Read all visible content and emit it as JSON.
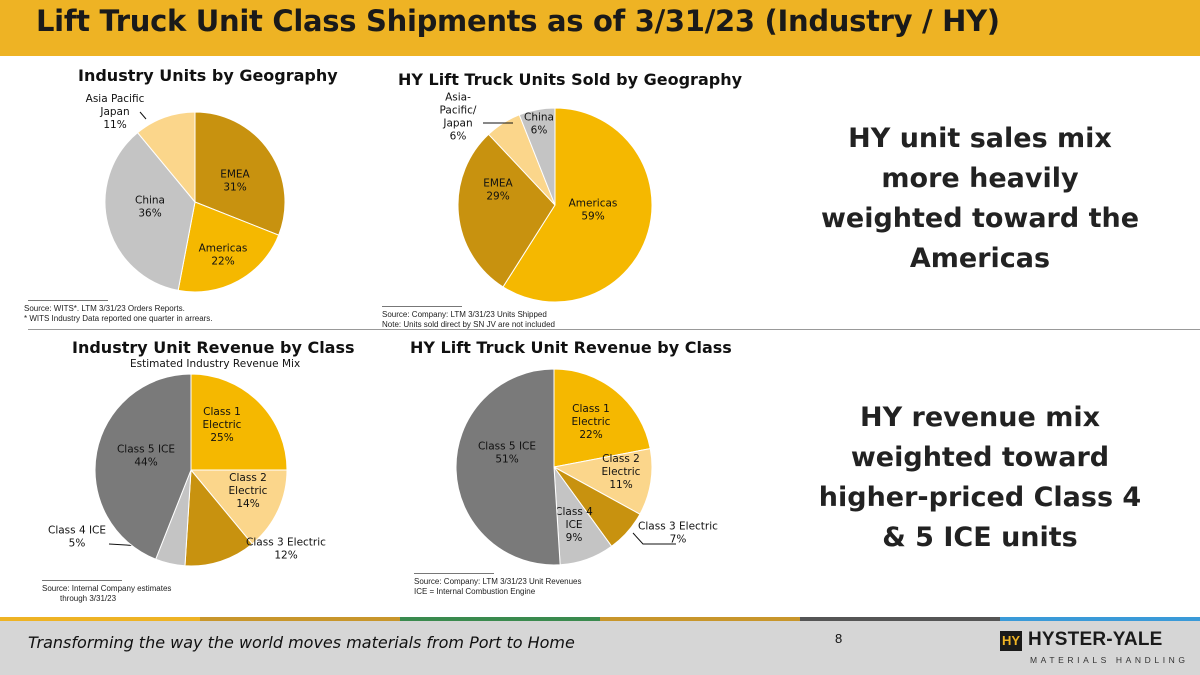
{
  "title": "Lift Truck Unit Class Shipments as of 3/31/23 (Industry / HY)",
  "callouts": {
    "top": [
      "HY unit sales mix",
      "more heavily",
      "weighted toward the",
      "Americas"
    ],
    "bottom": [
      "HY revenue mix",
      "weighted toward",
      "higher-priced Class 4",
      "& 5 ICE units"
    ]
  },
  "sources": {
    "c1": [
      "Source: WITS*.  LTM 3/31/23 Orders Reports.",
      "* WITS Industry Data reported one quarter in arrears."
    ],
    "c2": [
      "Source: Company: LTM 3/31/23 Units Shipped",
      "Note:  Units sold direct by SN JV are not included"
    ],
    "c3": [
      "Source: Internal Company estimates",
      "through 3/31/23"
    ],
    "c4": [
      "Source: Company: LTM 3/31/23 Unit Revenues",
      "ICE = Internal Combustion Engine"
    ]
  },
  "footer": {
    "tagline": "Transforming the way the world moves materials from Port to Home",
    "page_number": "8",
    "logo_mark": "HY",
    "logo_name": "HYSTER-YALE",
    "logo_sub": "MATERIALS HANDLING"
  },
  "colors": {
    "title_bar": "#eeb324",
    "stripe": [
      "#eeb324",
      "#c8962b",
      "#3a8a4e",
      "#c8962b",
      "#555555",
      "#3a9ad8"
    ]
  },
  "chart_data": [
    {
      "type": "pie",
      "title": "Industry Units by Geography",
      "subtitle": "",
      "slices": [
        {
          "name": "EMEA",
          "value": 31,
          "label": [
            "EMEA",
            "31%"
          ],
          "color": "#c8920f"
        },
        {
          "name": "Americas",
          "value": 22,
          "label": [
            "Americas",
            "22%"
          ],
          "color": "#f5b800"
        },
        {
          "name": "China",
          "value": 36,
          "label": [
            "China",
            "36%"
          ],
          "color": "#c4c4c4"
        },
        {
          "name": "Asia Pacific Japan",
          "value": 11,
          "label": [
            "Asia Pacific",
            "Japan",
            "11%"
          ],
          "color": "#fbd68b"
        }
      ]
    },
    {
      "type": "pie",
      "title": "HY Lift Truck Units Sold by Geography",
      "subtitle": "",
      "slices": [
        {
          "name": "Americas",
          "value": 59,
          "label": [
            "Americas",
            "59%"
          ],
          "color": "#f5b800"
        },
        {
          "name": "EMEA",
          "value": 29,
          "label": [
            "EMEA",
            "29%"
          ],
          "color": "#c8920f"
        },
        {
          "name": "Asia-Pacific/Japan",
          "value": 6,
          "label": [
            "Asia-",
            "Pacific/",
            "Japan",
            "6%"
          ],
          "color": "#fbd68b"
        },
        {
          "name": "China",
          "value": 6,
          "label": [
            "China",
            "6%"
          ],
          "color": "#c4c4c4"
        }
      ]
    },
    {
      "type": "pie",
      "title": "Industry Unit Revenue by Class",
      "subtitle": "Estimated Industry Revenue Mix",
      "slices": [
        {
          "name": "Class 1 Electric",
          "value": 25,
          "label": [
            "Class 1",
            "Electric",
            "25%"
          ],
          "color": "#f5b800"
        },
        {
          "name": "Class 2 Electric",
          "value": 14,
          "label": [
            "Class 2",
            "Electric",
            "14%"
          ],
          "color": "#fbd68b"
        },
        {
          "name": "Class 3 Electric",
          "value": 12,
          "label": [
            "Class 3 Electric",
            "12%"
          ],
          "color": "#c8920f"
        },
        {
          "name": "Class 4 ICE",
          "value": 5,
          "label": [
            "Class 4 ICE",
            "5%"
          ],
          "color": "#c4c4c4"
        },
        {
          "name": "Class 5 ICE",
          "value": 44,
          "label": [
            "Class 5 ICE",
            "44%"
          ],
          "color": "#7a7a7a"
        }
      ]
    },
    {
      "type": "pie",
      "title": "HY Lift Truck Unit Revenue by Class",
      "subtitle": "",
      "slices": [
        {
          "name": "Class 1 Electric",
          "value": 22,
          "label": [
            "Class 1",
            "Electric",
            "22%"
          ],
          "color": "#f5b800"
        },
        {
          "name": "Class 2 Electric",
          "value": 11,
          "label": [
            "Class 2",
            "Electric",
            "11%"
          ],
          "color": "#fbd68b"
        },
        {
          "name": "Class 3 Electric",
          "value": 7,
          "label": [
            "Class 3 Electric",
            "7%"
          ],
          "color": "#c8920f"
        },
        {
          "name": "Class 4 ICE",
          "value": 9,
          "label": [
            "Class 4",
            "ICE",
            "9%"
          ],
          "color": "#c4c4c4"
        },
        {
          "name": "Class 5 ICE",
          "value": 51,
          "label": [
            "Class 5 ICE",
            "51%"
          ],
          "color": "#7a7a7a"
        }
      ]
    }
  ]
}
